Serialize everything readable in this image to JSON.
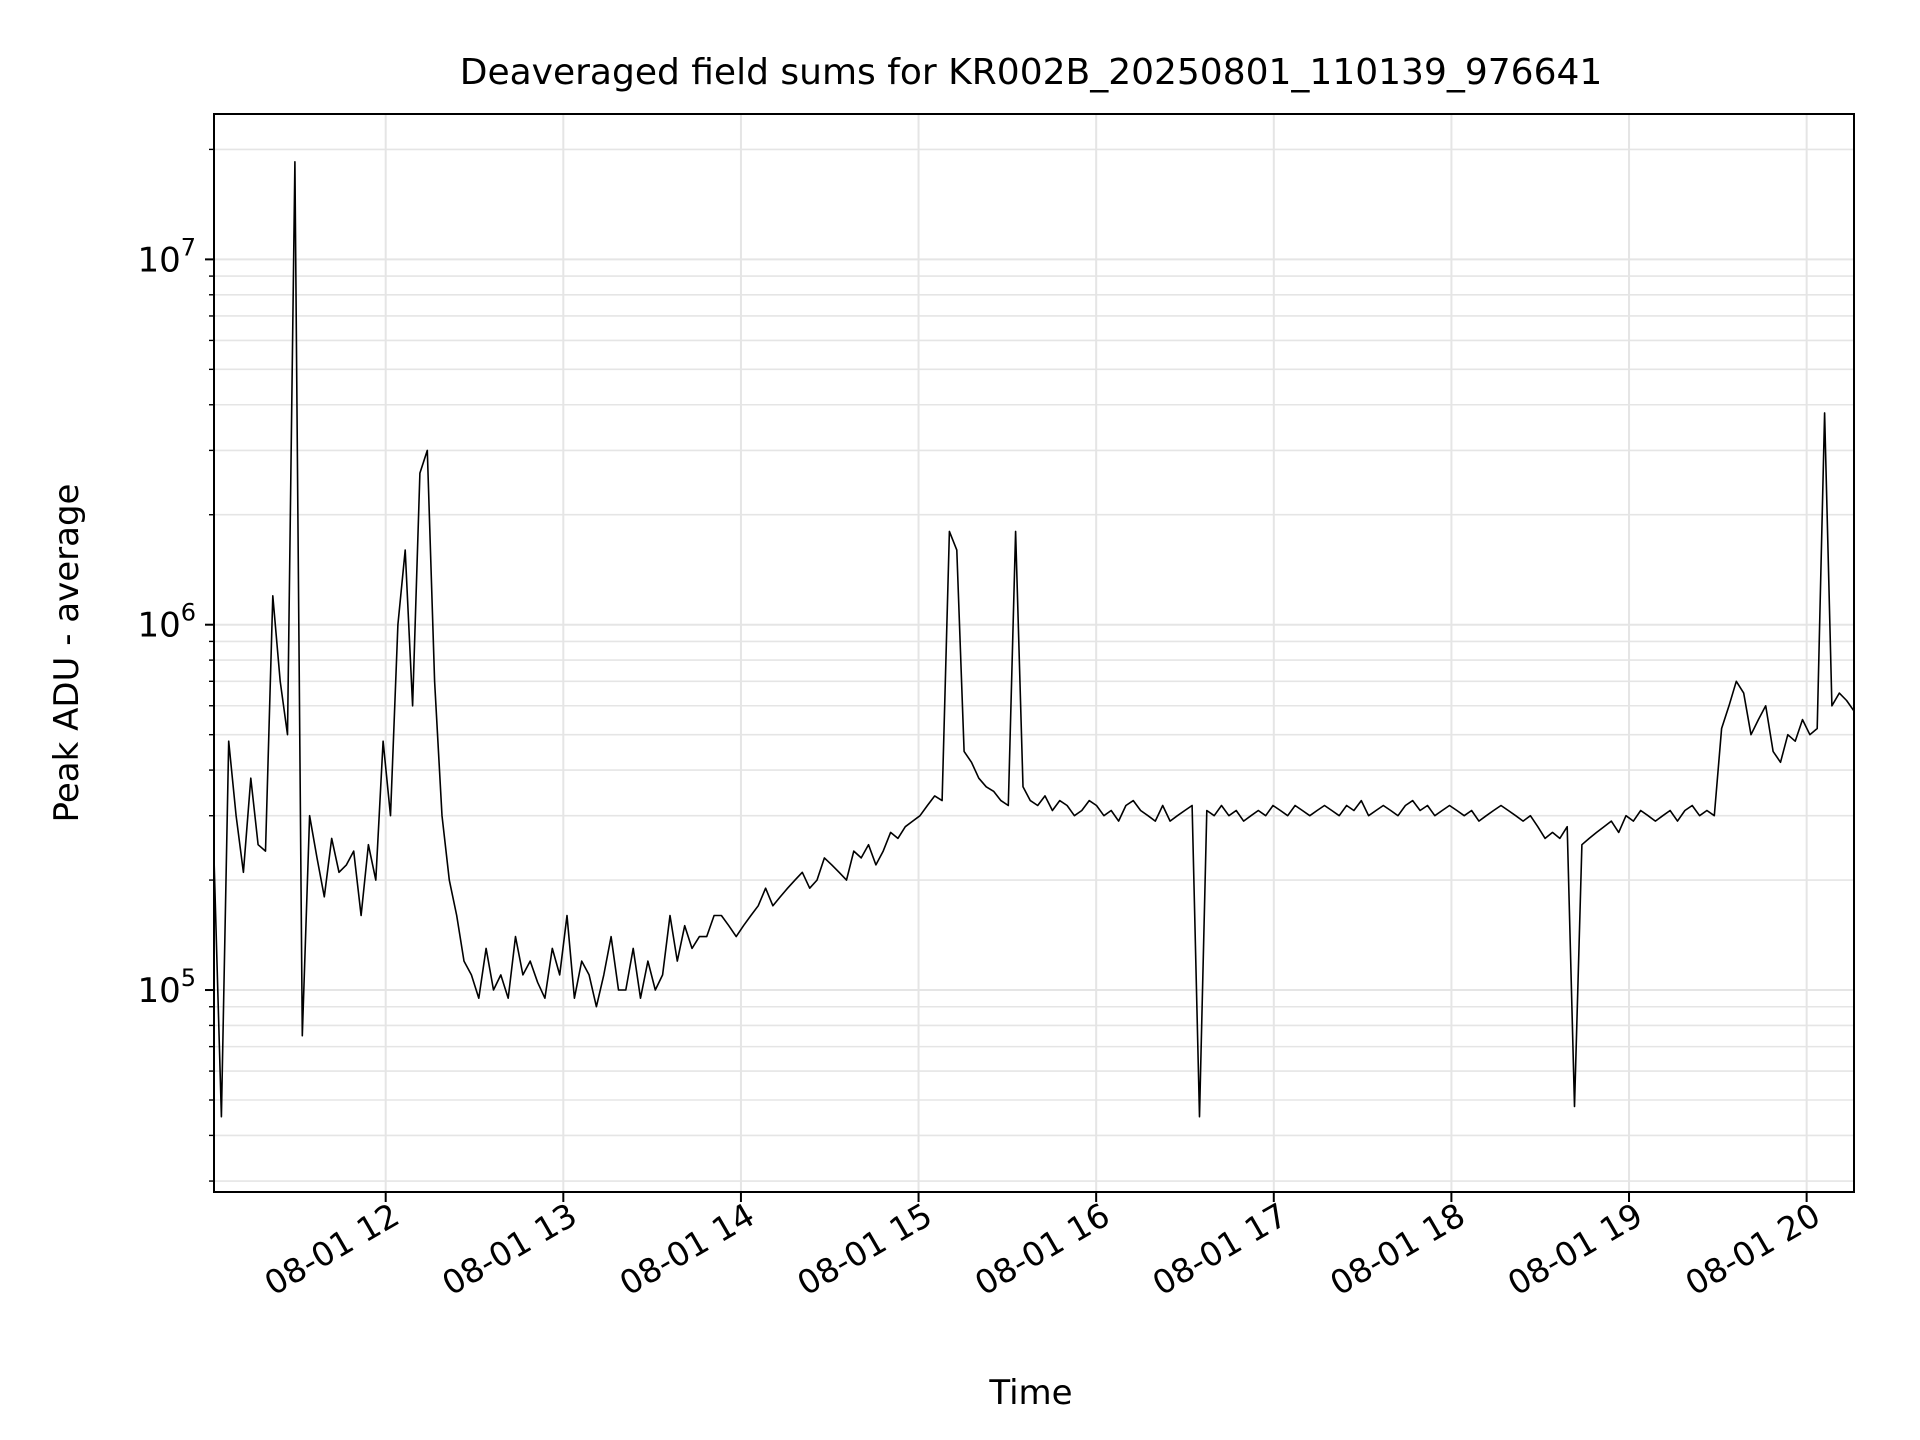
{
  "chart_data": {
    "type": "line",
    "title": "Deaveraged field sums for KR002B_20250801_110139_976641",
    "xlabel": "Time",
    "ylabel": "Peak ADU - average",
    "yscale": "log",
    "grid": true,
    "legend": "none",
    "line_color": "#000000",
    "grid_color": "#e5e5e5",
    "xlim": [
      "2025-08-01 11:02:00",
      "2025-08-01 20:16:00"
    ],
    "ylim": [
      28000,
      25000000
    ],
    "x_ticks": [
      {
        "value": "2025-08-01 12:00",
        "label": "08-01 12"
      },
      {
        "value": "2025-08-01 13:00",
        "label": "08-01 13"
      },
      {
        "value": "2025-08-01 14:00",
        "label": "08-01 14"
      },
      {
        "value": "2025-08-01 15:00",
        "label": "08-01 15"
      },
      {
        "value": "2025-08-01 16:00",
        "label": "08-01 16"
      },
      {
        "value": "2025-08-01 17:00",
        "label": "08-01 17"
      },
      {
        "value": "2025-08-01 18:00",
        "label": "08-01 18"
      },
      {
        "value": "2025-08-01 19:00",
        "label": "08-01 19"
      },
      {
        "value": "2025-08-01 20:00",
        "label": "08-01 20"
      }
    ],
    "y_ticks": [
      {
        "value": 100000,
        "base": "10",
        "exp": "5"
      },
      {
        "value": 1000000,
        "base": "10",
        "exp": "6"
      },
      {
        "value": 10000000,
        "base": "10",
        "exp": "7"
      }
    ],
    "series": [
      {
        "x_start": "2025-08-01 11:02:00",
        "x_end": "2025-08-01 20:16:00",
        "y": [
          230000,
          45000,
          480000,
          300000,
          210000,
          380000,
          250000,
          240000,
          1200000,
          700000,
          500000,
          18500000,
          75000,
          300000,
          230000,
          180000,
          260000,
          210000,
          220000,
          240000,
          160000,
          250000,
          200000,
          480000,
          300000,
          1000000,
          1600000,
          600000,
          2600000,
          3000000,
          700000,
          300000,
          200000,
          160000,
          120000,
          110000,
          95000,
          130000,
          100000,
          110000,
          95000,
          140000,
          110000,
          120000,
          105000,
          95000,
          130000,
          110000,
          160000,
          95000,
          120000,
          110000,
          90000,
          110000,
          140000,
          100000,
          100000,
          130000,
          95000,
          120000,
          100000,
          110000,
          160000,
          120000,
          150000,
          130000,
          140000,
          140000,
          160000,
          160000,
          150000,
          140000,
          150000,
          160000,
          170000,
          190000,
          170000,
          180000,
          190000,
          200000,
          210000,
          190000,
          200000,
          230000,
          220000,
          210000,
          200000,
          240000,
          230000,
          250000,
          220000,
          240000,
          270000,
          260000,
          280000,
          290000,
          300000,
          320000,
          340000,
          330000,
          1800000,
          1600000,
          450000,
          420000,
          380000,
          360000,
          350000,
          330000,
          320000,
          1800000,
          360000,
          330000,
          320000,
          340000,
          310000,
          330000,
          320000,
          300000,
          310000,
          330000,
          320000,
          300000,
          310000,
          290000,
          320000,
          330000,
          310000,
          300000,
          290000,
          320000,
          290000,
          300000,
          310000,
          320000,
          45000,
          310000,
          300000,
          320000,
          300000,
          310000,
          290000,
          300000,
          310000,
          300000,
          320000,
          310000,
          300000,
          320000,
          310000,
          300000,
          310000,
          320000,
          310000,
          300000,
          320000,
          310000,
          330000,
          300000,
          310000,
          320000,
          310000,
          300000,
          320000,
          330000,
          310000,
          320000,
          300000,
          310000,
          320000,
          310000,
          300000,
          310000,
          290000,
          300000,
          310000,
          320000,
          310000,
          300000,
          290000,
          300000,
          280000,
          260000,
          270000,
          260000,
          280000,
          48000,
          250000,
          260000,
          270000,
          280000,
          290000,
          270000,
          300000,
          290000,
          310000,
          300000,
          290000,
          300000,
          310000,
          290000,
          310000,
          320000,
          300000,
          310000,
          300000,
          520000,
          600000,
          700000,
          650000,
          500000,
          550000,
          600000,
          450000,
          420000,
          500000,
          480000,
          550000,
          500000,
          520000,
          3800000,
          600000,
          650000,
          620000,
          580000
        ]
      }
    ]
  }
}
